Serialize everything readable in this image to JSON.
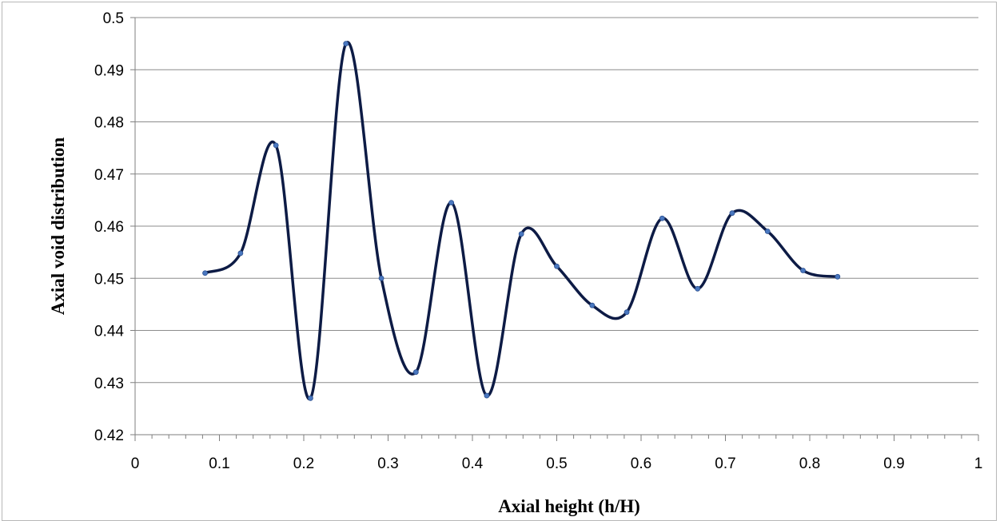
{
  "chart_data": {
    "type": "line",
    "title": "",
    "xlabel": "Axial height (h/H)",
    "ylabel": "Axial void distribution",
    "xlim": [
      0,
      1
    ],
    "ylim": [
      0.42,
      0.5
    ],
    "x_ticks": [
      "0",
      "0.1",
      "0.2",
      "0.3",
      "0.4",
      "0.5",
      "0.6",
      "0.7",
      "0.8",
      "0.9",
      "1"
    ],
    "y_ticks": [
      "0.42",
      "0.43",
      "0.44",
      "0.45",
      "0.46",
      "0.47",
      "0.48",
      "0.49",
      "0.5"
    ],
    "x_tick_values": [
      0,
      0.1,
      0.2,
      0.3,
      0.4,
      0.5,
      0.6,
      0.7,
      0.8,
      0.9,
      1
    ],
    "y_tick_values": [
      0.42,
      0.43,
      0.44,
      0.45,
      0.46,
      0.47,
      0.48,
      0.49,
      0.5
    ],
    "grid": "horizontal",
    "legend": "none",
    "smooth": true,
    "series": [
      {
        "x": [
          0.083,
          0.125,
          0.167,
          0.208,
          0.25,
          0.292,
          0.333,
          0.375,
          0.417,
          0.458,
          0.5,
          0.542,
          0.583,
          0.625,
          0.667,
          0.708,
          0.75,
          0.792,
          0.833
        ],
        "y": [
          0.451,
          0.4548,
          0.4755,
          0.427,
          0.495,
          0.45,
          0.432,
          0.4645,
          0.4275,
          0.4585,
          0.4523,
          0.4448,
          0.4435,
          0.4615,
          0.448,
          0.4625,
          0.459,
          0.4515,
          0.4503
        ]
      }
    ],
    "colors": {
      "line": "#0d1b45",
      "marker": "#4a78c0",
      "grid": "#8c8c8c",
      "axis": "#7f7f7f"
    }
  }
}
